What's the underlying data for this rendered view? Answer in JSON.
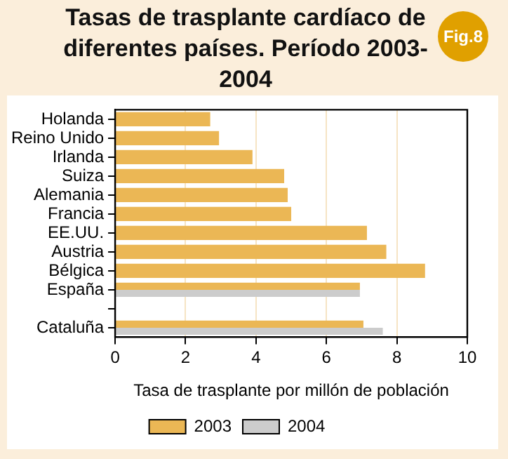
{
  "chart_data": {
    "type": "bar",
    "orientation": "horizontal",
    "title": "Tasas de trasplante cardíaco de diferentes países. Período 2003-2004",
    "xlabel": "Tasa de trasplante por millón de población",
    "categories": [
      "Holanda",
      "Reino Unido",
      "Irlanda",
      "Suiza",
      "Alemania",
      "Francia",
      "EE.UU.",
      "Austria",
      "Bélgica",
      "España",
      null,
      "Cataluña"
    ],
    "series": [
      {
        "name": "2003",
        "color": "#ebb755",
        "values": [
          2.7,
          2.95,
          3.9,
          4.8,
          4.9,
          5.0,
          7.15,
          7.7,
          8.8,
          6.95,
          null,
          7.05
        ]
      },
      {
        "name": "2004",
        "color": "#cccccc",
        "values": [
          null,
          null,
          null,
          null,
          null,
          null,
          null,
          null,
          null,
          6.95,
          null,
          7.6
        ]
      }
    ],
    "xlim": [
      0,
      10
    ],
    "xticks": [
      0,
      2,
      4,
      6,
      8,
      10
    ],
    "grid": "x",
    "legend": "bottom",
    "annotations": [
      "Fig.8"
    ]
  }
}
